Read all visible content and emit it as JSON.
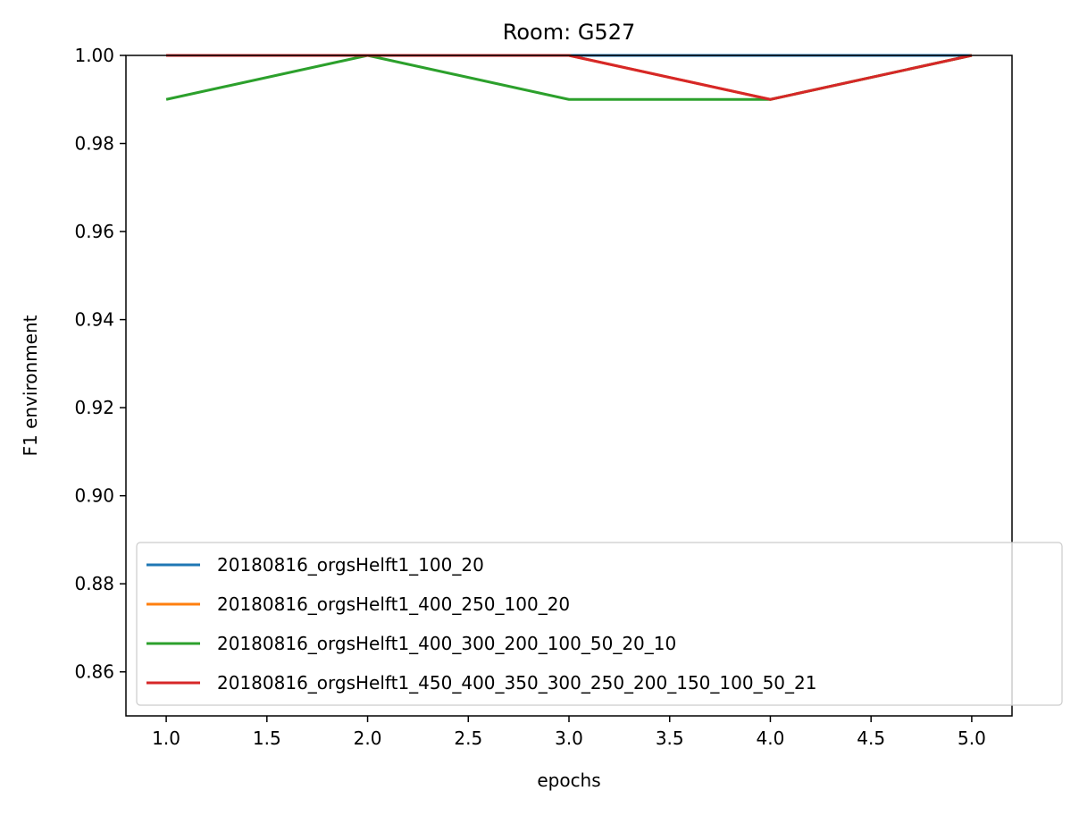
{
  "chart_data": {
    "type": "line",
    "title": "Room: G527",
    "xlabel": "epochs",
    "ylabel": "F1 environment",
    "xlim": [
      0.8,
      5.2
    ],
    "ylim": [
      0.85,
      1.0
    ],
    "xticks": [
      1.0,
      1.5,
      2.0,
      2.5,
      3.0,
      3.5,
      4.0,
      4.5,
      5.0
    ],
    "xtick_labels": [
      "1.0",
      "1.5",
      "2.0",
      "2.5",
      "3.0",
      "3.5",
      "4.0",
      "4.5",
      "5.0"
    ],
    "yticks": [
      0.86,
      0.88,
      0.9,
      0.92,
      0.94,
      0.96,
      0.98,
      1.0
    ],
    "ytick_labels": [
      "0.86",
      "0.88",
      "0.90",
      "0.92",
      "0.94",
      "0.96",
      "0.98",
      "1.00"
    ],
    "grid": false,
    "legend_position": "lower right",
    "x": [
      1,
      2,
      3,
      4,
      5
    ],
    "series": [
      {
        "name": "20180816_orgsHelft1_100_20",
        "color": "#1f77b4",
        "values": [
          1.0,
          1.0,
          1.0,
          1.0,
          1.0
        ]
      },
      {
        "name": "20180816_orgsHelft1_400_250_100_20",
        "color": "#ff7f0e",
        "values": [
          1.0,
          1.0,
          1.0,
          0.99,
          1.0
        ]
      },
      {
        "name": "20180816_orgsHelft1_400_300_200_100_50_20_10",
        "color": "#2ca02c",
        "values": [
          0.99,
          1.0,
          0.99,
          0.99,
          1.0
        ]
      },
      {
        "name": "20180816_orgsHelft1_450_400_350_300_250_200_150_100_50_21",
        "color": "#d62728",
        "values": [
          1.0,
          1.0,
          1.0,
          0.99,
          1.0
        ]
      }
    ]
  }
}
